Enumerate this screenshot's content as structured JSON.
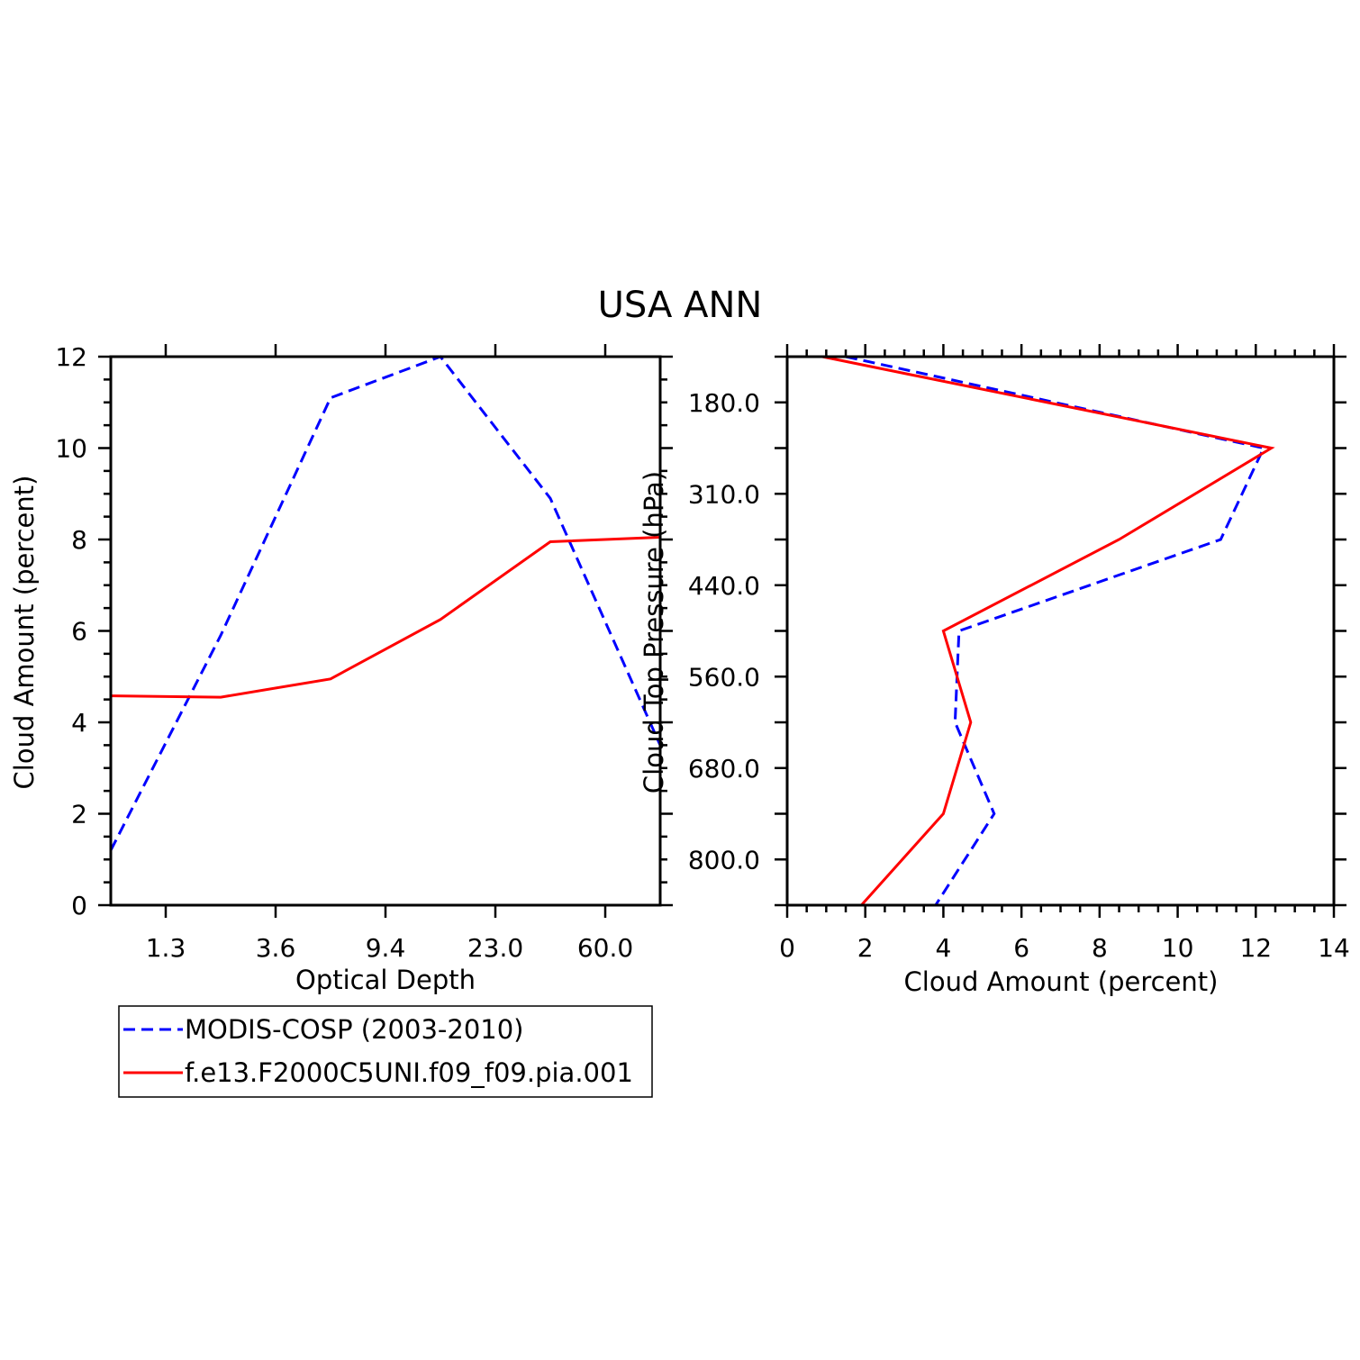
{
  "figure_title": "USA ANN",
  "colors": {
    "MODIS-COSP (2003-2010)": "#0000ff",
    "f.e13.F2000C5UNI.f09_f09.pia.001": "#ff0000"
  },
  "legend": {
    "entries": [
      {
        "label": "MODIS-COSP (2003-2010)",
        "style": "dashed"
      },
      {
        "label": "f.e13.F2000C5UNI.f09_f09.pia.001",
        "style": "solid"
      }
    ]
  },
  "chart_data": [
    {
      "type": "line",
      "xlabel": "Optical Depth",
      "ylabel": "Cloud Amount (percent)",
      "x_ticks": [
        "1.3",
        "3.6",
        "9.4",
        "23.0",
        "60.0"
      ],
      "ylim": [
        0,
        12
      ],
      "y_ticks": [
        "0",
        "2",
        "4",
        "6",
        "8",
        "10",
        "12"
      ],
      "series": [
        {
          "name": "MODIS-COSP (2003-2010)",
          "style": "dashed",
          "x": [
            0,
            1,
            2,
            3,
            4,
            5
          ],
          "values": [
            1.2,
            5.9,
            11.1,
            12.0,
            8.9,
            3.5
          ]
        },
        {
          "name": "f.e13.F2000C5UNI.f09_f09.pia.001",
          "style": "solid",
          "x": [
            0,
            1,
            2,
            3,
            4,
            5
          ],
          "values": [
            4.58,
            4.55,
            4.95,
            6.25,
            7.95,
            8.05
          ]
        }
      ]
    },
    {
      "type": "line",
      "xlabel": "Cloud Amount (percent)",
      "ylabel": "Cloud Top Pressure (hPa)",
      "xlim": [
        0,
        14
      ],
      "x_ticks": [
        "0",
        "2",
        "4",
        "6",
        "8",
        "10",
        "12",
        "14"
      ],
      "y_ticks": [
        "180.0",
        "310.0",
        "440.0",
        "560.0",
        "680.0",
        "800.0"
      ],
      "y_levels": 12,
      "series": [
        {
          "name": "MODIS-COSP (2003-2010)",
          "style": "dashed",
          "x": [
            1.5,
            12.2,
            11.1,
            4.4,
            4.3,
            5.3,
            3.8
          ],
          "level": [
            0,
            2,
            4,
            6,
            8,
            10,
            12
          ]
        },
        {
          "name": "f.e13.F2000C5UNI.f09_f09.pia.001",
          "style": "solid",
          "x": [
            0.9,
            12.4,
            8.5,
            4.0,
            4.7,
            4.0,
            1.9
          ],
          "level": [
            0,
            2,
            4,
            6,
            8,
            10,
            12
          ]
        }
      ]
    }
  ]
}
